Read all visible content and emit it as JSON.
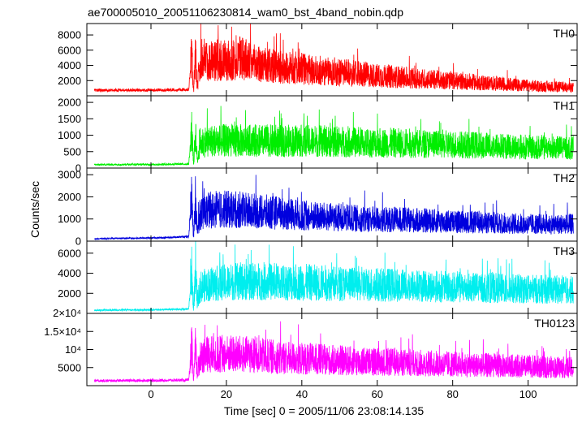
{
  "chart_data": {
    "type": "line",
    "title": "ae700005010_20051106230814_wam0_bst_4band_nobin.qdp",
    "xlabel": "Time [sec] 0 = 2005/11/06 23:08:14.135",
    "ylabel": "Counts/sec",
    "xlim": [
      -17,
      113
    ],
    "xticks": [
      0,
      20,
      40,
      60,
      80,
      100
    ],
    "xtick_labels": [
      "0",
      "20",
      "40",
      "60",
      "80",
      "100"
    ],
    "grid": false,
    "legend": "none",
    "series": [
      {
        "name": "TH0",
        "color": "#ff0000",
        "ylim": [
          0,
          9500
        ],
        "yticks": [
          2000,
          4000,
          6000,
          8000
        ],
        "ytick_labels": [
          "2000",
          "4000",
          "6000",
          "8000"
        ],
        "x": [
          -15,
          -10,
          -5,
          0,
          5,
          10,
          10.8,
          11.3,
          11.8,
          12.3,
          13,
          15,
          18,
          20,
          22,
          24,
          26,
          30,
          35,
          40,
          45,
          50,
          55,
          60,
          70,
          80,
          90,
          100,
          112
        ],
        "y": [
          700,
          720,
          730,
          720,
          760,
          780,
          5200,
          600,
          5200,
          1000,
          4200,
          4300,
          4200,
          4100,
          4300,
          4800,
          4000,
          3600,
          3300,
          3200,
          2900,
          2800,
          2600,
          2400,
          2100,
          1800,
          1500,
          1200,
          1000
        ]
      },
      {
        "name": "TH1",
        "color": "#00ee00",
        "ylim": [
          0,
          2200
        ],
        "yticks": [
          0,
          500,
          1000,
          1500,
          2000
        ],
        "ytick_labels": [
          "0",
          "500",
          "1000",
          "1500",
          "2000"
        ],
        "x": [
          -15,
          -10,
          -5,
          0,
          5,
          10,
          10.8,
          11.3,
          11.8,
          12.3,
          13,
          15,
          20,
          30,
          40,
          50,
          60,
          70,
          80,
          90,
          100,
          112
        ],
        "y": [
          100,
          105,
          110,
          105,
          115,
          120,
          1050,
          90,
          1050,
          200,
          700,
          760,
          760,
          750,
          750,
          730,
          700,
          680,
          650,
          620,
          580,
          560
        ]
      },
      {
        "name": "TH2",
        "color": "#0000dd",
        "ylim": [
          0,
          3300
        ],
        "yticks": [
          0,
          1000,
          2000,
          3000
        ],
        "ytick_labels": [
          "0",
          "1000",
          "2000",
          "3000"
        ],
        "x": [
          -15,
          -10,
          -5,
          0,
          5,
          10,
          10.8,
          11.3,
          11.8,
          12.3,
          13,
          15,
          20,
          25,
          30,
          40,
          50,
          60,
          70,
          80,
          90,
          100,
          112
        ],
        "y": [
          100,
          120,
          130,
          140,
          160,
          200,
          2000,
          150,
          1700,
          400,
          1100,
          1250,
          1300,
          1250,
          1200,
          1050,
          950,
          900,
          850,
          800,
          750,
          700,
          700
        ]
      },
      {
        "name": "TH3",
        "color": "#00eeee",
        "ylim": [
          0,
          7200
        ],
        "yticks": [
          2000,
          4000,
          6000
        ],
        "ytick_labels": [
          "2000",
          "4000",
          "6000"
        ],
        "x": [
          -15,
          -10,
          -5,
          0,
          5,
          10,
          10.8,
          11.3,
          11.8,
          12.3,
          13,
          15,
          20,
          25,
          30,
          40,
          50,
          60,
          70,
          80,
          90,
          100,
          112
        ],
        "y": [
          300,
          320,
          340,
          350,
          380,
          420,
          3800,
          400,
          3700,
          900,
          2400,
          2600,
          2800,
          2900,
          2900,
          2800,
          2700,
          2600,
          2500,
          2400,
          2300,
          2200,
          2100
        ]
      },
      {
        "name": "TH0123",
        "color": "#ff00ff",
        "ylim": [
          0,
          20000
        ],
        "yticks": [
          5000,
          10000,
          15000
        ],
        "ytick_labels": [
          "5000",
          "10⁴",
          "1.5×10⁴"
        ],
        "x": [
          -15,
          -10,
          -5,
          0,
          5,
          10,
          10.8,
          11.3,
          11.8,
          12.3,
          13,
          15,
          20,
          25,
          30,
          40,
          50,
          60,
          70,
          80,
          90,
          100,
          112
        ],
        "y": [
          1300,
          1350,
          1380,
          1400,
          1450,
          1500,
          10000,
          1300,
          9500,
          2500,
          7500,
          7800,
          8000,
          7800,
          7400,
          6800,
          6300,
          6000,
          5700,
          5400,
          5100,
          4800,
          4500
        ]
      }
    ],
    "stray_tick_label": "2×10⁴"
  }
}
